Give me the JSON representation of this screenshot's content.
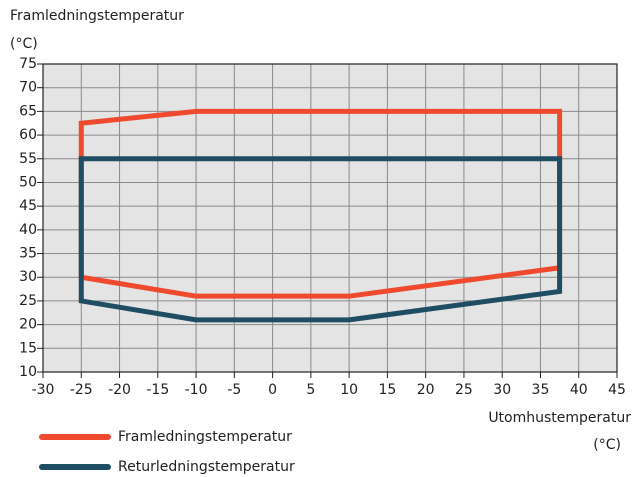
{
  "chart_data": {
    "type": "line",
    "ylabel": "Framledningstemperatur",
    "yunit": "(°C)",
    "xlabel": "Utomhustemperatur",
    "xunit": "(°C)",
    "xlim": [
      -30,
      45
    ],
    "xticks": [
      -30,
      -25,
      -20,
      -15,
      -10,
      -5,
      0,
      5,
      10,
      15,
      20,
      25,
      30,
      35,
      40,
      45
    ],
    "ylim": [
      10,
      75
    ],
    "yticks": [
      10,
      15,
      20,
      25,
      30,
      35,
      40,
      45,
      50,
      55,
      60,
      65,
      70,
      75
    ],
    "grid": true,
    "legend": "bottom-left",
    "series": [
      {
        "name": "Framledningstemperatur",
        "color": "#ef4a2e",
        "x": [
          -25,
          -25,
          -10,
          37.5,
          37.5,
          10,
          -10
        ],
        "values": [
          30,
          62.5,
          65,
          65,
          32,
          26,
          26
        ]
      },
      {
        "name": "Returledningstemperatur",
        "color": "#1f4d63",
        "x": [
          -25,
          -25,
          37.5,
          37.5,
          10,
          -10
        ],
        "values": [
          25,
          55,
          55,
          27,
          21,
          21
        ]
      }
    ]
  }
}
